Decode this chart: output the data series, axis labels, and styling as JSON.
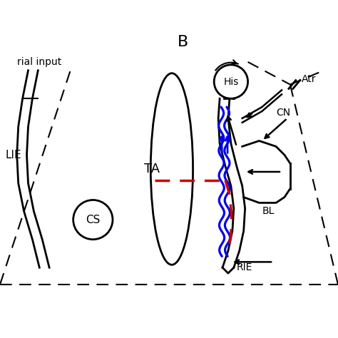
{
  "title_B": "B",
  "label_TA": "TA",
  "label_His": "His",
  "label_CS": "CS",
  "label_CN": "CN",
  "label_BL": "BL",
  "label_RIE": "RIE",
  "label_LIE": "LIE",
  "label_atrial": "rial input",
  "label_Atr": "Atr",
  "bg_color": "#ffffff",
  "line_color": "#000000",
  "blue_color": "#0000ee",
  "red_color": "#cc0000"
}
